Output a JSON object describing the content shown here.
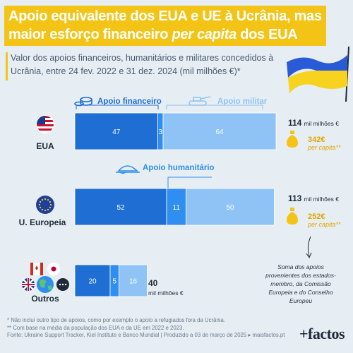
{
  "title": {
    "line1": "Apoio equivalente dos EUA e UE à Ucrânia, mas",
    "line2_pre": "maior esforço financeiro ",
    "line2_em": "per capita",
    "line2_post": " dos EUA"
  },
  "subtitle": "Valor dos apoios financeiros, humanitários e militares concedidos à Ucrânia, entre 24 fev. 2022 e 31 dez. 2024 (mil milhões €)*",
  "colors": {
    "financeiro": "#1f6ed4",
    "humanitario": "#2f8ef0",
    "militar": "#8fc3f6",
    "accent": "#f3c416",
    "text": "#1e2a3a",
    "ukraine_blue": "#2a5bd7",
    "ukraine_yellow": "#f7d21e"
  },
  "chart_data": {
    "type": "bar",
    "orientation": "horizontal",
    "stacked": true,
    "categories": [
      "EUA",
      "U. Europeia",
      "Outros"
    ],
    "series": [
      {
        "name": "Apoio financeiro",
        "values": [
          47,
          52,
          20
        ]
      },
      {
        "name": "Apoio humanitário",
        "values": [
          3,
          11,
          5
        ]
      },
      {
        "name": "Apoio militar",
        "values": [
          64,
          50,
          16
        ]
      }
    ],
    "totals": [
      {
        "value": "114",
        "unit": "mil milhões €"
      },
      {
        "value": "113",
        "unit": "mil milhões €"
      },
      {
        "value": "40",
        "unit": "mil milhões €"
      }
    ],
    "per_capita": [
      {
        "value": "342€",
        "label": "per capita**"
      },
      {
        "value": "252€",
        "label": "per capita**"
      }
    ]
  },
  "icons": [
    "us-flag-icon",
    "eu-flag-icon",
    "canada-flag-icon",
    "japan-flag-icon",
    "uk-flag-icon",
    "globe-icon",
    "more-icon",
    "coins-icon",
    "tank-icon",
    "bread-icon",
    "money-bag-icon",
    "ukraine-flag-icon"
  ],
  "note": "Soma dos apoios provenientes dos estados-membro, da Comissão Europeia e do Conselho Europeu",
  "footer": {
    "line1": "* Não inclui outro tipo de apoios, como por exemplo o apoio a refugiados fora da Ucrânia.",
    "line2": "** Com base na média da população dos EUA e da UE em 2022 e 2023.",
    "line3": "Fonte: Ukraine Support Tracker, Kiel Institute e Banco Mundial | Produzido a 03 de março de 2025 ▸ maisfactos.pt"
  },
  "logo": "+factos"
}
